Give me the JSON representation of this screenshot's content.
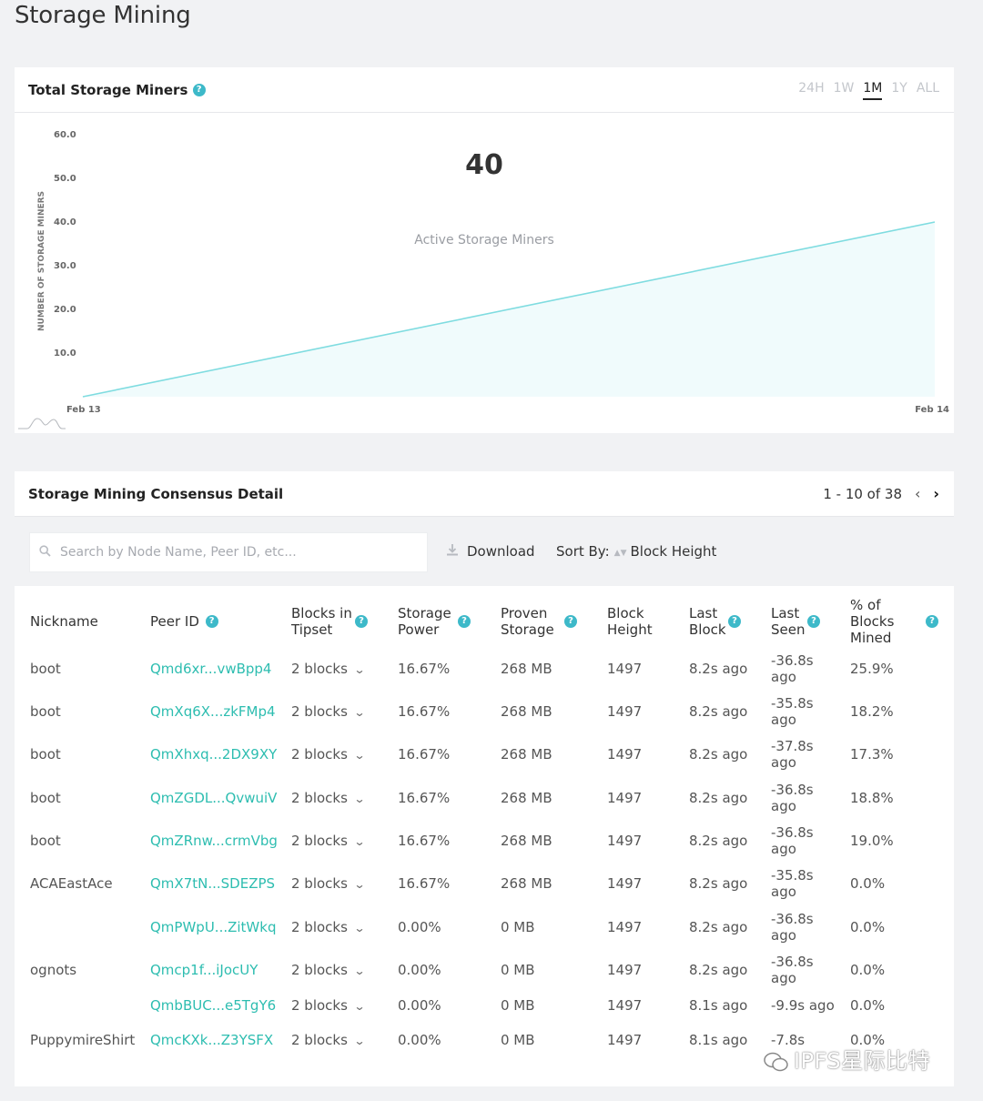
{
  "page": {
    "title": "Storage Mining"
  },
  "chart_card": {
    "title": "Total Storage Miners",
    "help_glyph": "?",
    "range_tabs": [
      {
        "label": "24H",
        "active": false
      },
      {
        "label": "1W",
        "active": false
      },
      {
        "label": "1M",
        "active": true
      },
      {
        "label": "1Y",
        "active": false
      },
      {
        "label": "ALL",
        "active": false
      }
    ]
  },
  "chart_data": {
    "type": "area",
    "headline_value": "40",
    "headline_label": "Active Storage Miners",
    "ylabel": "NUMBER OF STORAGE MINERS",
    "y_ticks": [
      "60.0",
      "50.0",
      "40.0",
      "30.0",
      "20.0",
      "10.0"
    ],
    "ylim": [
      0,
      60
    ],
    "x_ticks": [
      "Feb 13",
      "Feb 14"
    ],
    "x": [
      "Feb 13",
      "Feb 14"
    ],
    "series": [
      {
        "values": [
          0,
          40
        ]
      }
    ],
    "color": "#7fdce0",
    "fill_color": "#f0fbfc",
    "grid": false
  },
  "table_card": {
    "title": "Storage Mining Consensus Detail",
    "pager": {
      "range": "1 - 10 of 38",
      "prev": "‹",
      "next": "›"
    },
    "search": {
      "placeholder": "Search by Node Name, Peer ID, etc...",
      "icon": "search-icon"
    },
    "download_label": "Download",
    "sort_label": "Sort By:",
    "sort_value": "Block Height",
    "columns": {
      "nickname": "Nickname",
      "peer_id": "Peer ID",
      "blocks_in_tipset": [
        "Blocks in",
        "Tipset"
      ],
      "storage_power": [
        "Storage",
        "Power"
      ],
      "proven_storage": [
        "Proven",
        "Storage"
      ],
      "block_height": [
        "Block",
        "Height"
      ],
      "last_block": [
        "Last",
        "Block"
      ],
      "last_seen": [
        "Last",
        "Seen"
      ],
      "pct_blocks_mined": [
        "% of",
        "Blocks",
        "Mined"
      ]
    },
    "rows": [
      {
        "nickname": "boot",
        "peer_id": "Qmd6xr...vwBpp4",
        "blocks": "2 blocks",
        "storage_power": "16.67%",
        "proven": "268 MB",
        "height": "1497",
        "last_block": "8.2s ago",
        "last_seen": [
          "-36.8s",
          "ago"
        ],
        "pct": "25.9%"
      },
      {
        "nickname": "boot",
        "peer_id": "QmXq6X...zkFMp4",
        "blocks": "2 blocks",
        "storage_power": "16.67%",
        "proven": "268 MB",
        "height": "1497",
        "last_block": "8.2s ago",
        "last_seen": [
          "-35.8s",
          "ago"
        ],
        "pct": "18.2%"
      },
      {
        "nickname": "boot",
        "peer_id": "QmXhxq...2DX9XY",
        "blocks": "2 blocks",
        "storage_power": "16.67%",
        "proven": "268 MB",
        "height": "1497",
        "last_block": "8.2s ago",
        "last_seen": [
          "-37.8s",
          "ago"
        ],
        "pct": "17.3%"
      },
      {
        "nickname": "boot",
        "peer_id": "QmZGDL...QvwuiV",
        "blocks": "2 blocks",
        "storage_power": "16.67%",
        "proven": "268 MB",
        "height": "1497",
        "last_block": "8.2s ago",
        "last_seen": [
          "-36.8s",
          "ago"
        ],
        "pct": "18.8%"
      },
      {
        "nickname": "boot",
        "peer_id": "QmZRnw...crmVbg",
        "blocks": "2 blocks",
        "storage_power": "16.67%",
        "proven": "268 MB",
        "height": "1497",
        "last_block": "8.2s ago",
        "last_seen": [
          "-36.8s",
          "ago"
        ],
        "pct": "19.0%"
      },
      {
        "nickname": "ACAEastAce",
        "peer_id": "QmX7tN...SDEZPS",
        "blocks": "2 blocks",
        "storage_power": "16.67%",
        "proven": "268 MB",
        "height": "1497",
        "last_block": "8.2s ago",
        "last_seen": [
          "-35.8s",
          "ago"
        ],
        "pct": "0.0%"
      },
      {
        "nickname": "",
        "peer_id": "QmPWpU...ZitWkq",
        "blocks": "2 blocks",
        "storage_power": "0.00%",
        "proven": "0 MB",
        "height": "1497",
        "last_block": "8.2s ago",
        "last_seen": [
          "-36.8s",
          "ago"
        ],
        "pct": "0.0%"
      },
      {
        "nickname": "ognots",
        "peer_id": "Qmcp1f...iJocUY",
        "blocks": "2 blocks",
        "storage_power": "0.00%",
        "proven": "0 MB",
        "height": "1497",
        "last_block": "8.2s ago",
        "last_seen": [
          "-36.8s",
          "ago"
        ],
        "pct": "0.0%"
      },
      {
        "nickname": "",
        "peer_id": "QmbBUC...e5TgY6",
        "blocks": "2 blocks",
        "storage_power": "0.00%",
        "proven": "0 MB",
        "height": "1497",
        "last_block": "8.1s ago",
        "last_seen": [
          "-9.9s ago",
          ""
        ],
        "pct": "0.0%"
      },
      {
        "nickname": "PuppymireShirt",
        "peer_id": "QmcKXk...Z3YSFX",
        "blocks": "2 blocks",
        "storage_power": "0.00%",
        "proven": "0 MB",
        "height": "1497",
        "last_block": "8.1s ago",
        "last_seen": [
          "-7.8s",
          ""
        ],
        "pct": "0.0%"
      }
    ]
  },
  "watermark": {
    "text": "IPFS星际比特"
  }
}
